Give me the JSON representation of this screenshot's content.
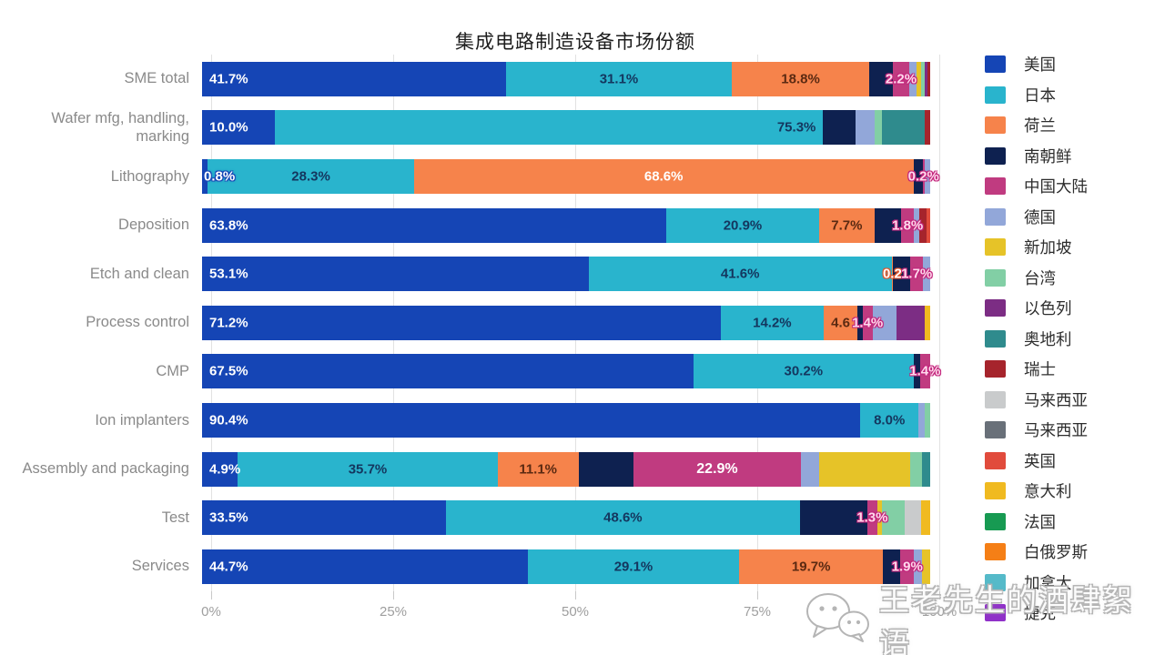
{
  "title": "集成电路制造设备市场份额",
  "watermark": {
    "text": "王老先生的酒肆絮语",
    "icon": "wechat-chat-bubbles-icon"
  },
  "legend": [
    {
      "id": "us",
      "label": "美国",
      "color": "#1545b5"
    },
    {
      "id": "jp",
      "label": "日本",
      "color": "#29b4cd"
    },
    {
      "id": "nl",
      "label": "荷兰",
      "color": "#f6834b"
    },
    {
      "id": "kr",
      "label": "南朝鲜",
      "color": "#0e2150"
    },
    {
      "id": "cn",
      "label": "中国大陆",
      "color": "#c03b80"
    },
    {
      "id": "de",
      "label": "德国",
      "color": "#92a7d9"
    },
    {
      "id": "sg",
      "label": "新加坡",
      "color": "#e6c328"
    },
    {
      "id": "tw",
      "label": "台湾",
      "color": "#82cfa5"
    },
    {
      "id": "il",
      "label": "以色列",
      "color": "#7c2d84"
    },
    {
      "id": "at",
      "label": "奥地利",
      "color": "#2f8b8d"
    },
    {
      "id": "ch",
      "label": "瑞士",
      "color": "#a6242c"
    },
    {
      "id": "my1",
      "label": "马来西亚",
      "color": "#c9cbcc"
    },
    {
      "id": "my2",
      "label": "马来西亚",
      "color": "#697079"
    },
    {
      "id": "uk",
      "label": "英国",
      "color": "#e14b3c"
    },
    {
      "id": "it",
      "label": "意大利",
      "color": "#f0ba20"
    },
    {
      "id": "fr",
      "label": "法国",
      "color": "#179a52"
    },
    {
      "id": "by",
      "label": "白俄罗斯",
      "color": "#f57f16"
    },
    {
      "id": "ca",
      "label": "加拿大",
      "color": "#55bac9"
    },
    {
      "id": "cz",
      "label": "捷克",
      "color": "#9031c9"
    }
  ],
  "chart_data": {
    "type": "bar",
    "variant": "horizontal-stacked",
    "unit": "%",
    "xlim": [
      0,
      100
    ],
    "x_ticks": [
      "0%",
      "25%",
      "50%",
      "75%",
      "100%"
    ],
    "x_tick_values": [
      0,
      25,
      50,
      75,
      100
    ],
    "grid": true,
    "legend_position": "right",
    "title": "集成电路制造设备市场份额",
    "categories": [
      "SME total",
      "Wafer mfg, handling, marking",
      "Lithography",
      "Deposition",
      "Etch and clean",
      "Process control",
      "CMP",
      "Ion implanters",
      "Assembly and packaging",
      "Test",
      "Services"
    ],
    "segment_columns": [
      "country_id",
      "value_percent",
      "label",
      "label_style"
    ],
    "rows": [
      {
        "category": "SME total",
        "segments": [
          [
            "us",
            41.7,
            "41.7%",
            "us-left"
          ],
          [
            "jp",
            31.1,
            "31.1%",
            "jp-center"
          ],
          [
            "nl",
            18.8,
            "18.8%",
            "nl-center"
          ],
          [
            "kr",
            3.3,
            null,
            null
          ],
          [
            "cn",
            2.2,
            "2.2%",
            "cn-glow"
          ],
          [
            "de",
            1.0,
            null,
            null
          ],
          [
            "sg",
            0.7,
            null,
            null
          ],
          [
            "tw",
            0.4,
            null,
            null
          ],
          [
            "il",
            0.4,
            null,
            null
          ],
          [
            "ch",
            0.4,
            null,
            null
          ]
        ]
      },
      {
        "category": "Wafer mfg, handling, marking",
        "segments": [
          [
            "us",
            10.0,
            "10.0%",
            "us-left"
          ],
          [
            "jp",
            75.3,
            "75.3%",
            "jp-right"
          ],
          [
            "kr",
            4.4,
            null,
            null
          ],
          [
            "de",
            2.7,
            null,
            null
          ],
          [
            "tw",
            1.0,
            null,
            null
          ],
          [
            "at",
            5.9,
            null,
            null
          ],
          [
            "ch",
            0.7,
            null,
            null
          ]
        ]
      },
      {
        "category": "Lithography",
        "segments": [
          [
            "us",
            0.8,
            "0.8%",
            "us-glow"
          ],
          [
            "jp",
            28.3,
            "28.3%",
            "jp-center"
          ],
          [
            "nl",
            68.6,
            "68.6%",
            "nl-white-center"
          ],
          [
            "kr",
            1.3,
            null,
            null
          ],
          [
            "cn",
            0.2,
            "0.2%",
            "cn-glow"
          ],
          [
            "de",
            0.8,
            null,
            null
          ]
        ]
      },
      {
        "category": "Deposition",
        "segments": [
          [
            "us",
            63.8,
            "63.8%",
            "us-left"
          ],
          [
            "jp",
            20.9,
            "20.9%",
            "jp-center"
          ],
          [
            "nl",
            7.7,
            "7.7%",
            "nl-center"
          ],
          [
            "kr",
            3.6,
            null,
            null
          ],
          [
            "cn",
            1.8,
            "1.8%",
            "cn-glow"
          ],
          [
            "de",
            0.7,
            null,
            null
          ],
          [
            "ch",
            1.0,
            null,
            null
          ],
          [
            "uk",
            0.5,
            null,
            null
          ]
        ]
      },
      {
        "category": "Etch and clean",
        "segments": [
          [
            "us",
            53.1,
            "53.1%",
            "us-left"
          ],
          [
            "jp",
            41.6,
            "41.6%",
            "jp-center"
          ],
          [
            "nl",
            0.2,
            "0.2",
            "nl-glow"
          ],
          [
            "kr",
            2.4,
            null,
            null
          ],
          [
            "cn",
            1.7,
            "1.7%",
            "cn-glow"
          ],
          [
            "de",
            1.0,
            null,
            null
          ]
        ]
      },
      {
        "category": "Process control",
        "segments": [
          [
            "us",
            71.2,
            "71.2%",
            "us-left"
          ],
          [
            "jp",
            14.2,
            "14.2%",
            "jp-center"
          ],
          [
            "nl",
            4.6,
            "4.6",
            "nl-center"
          ],
          [
            "kr",
            0.7,
            null,
            null
          ],
          [
            "cn",
            1.4,
            "1.4%",
            "cn-glow"
          ],
          [
            "de",
            3.3,
            null,
            null
          ],
          [
            "il",
            3.8,
            null,
            null
          ],
          [
            "it",
            0.8,
            null,
            null
          ]
        ]
      },
      {
        "category": "CMP",
        "segments": [
          [
            "us",
            67.5,
            "67.5%",
            "us-left"
          ],
          [
            "jp",
            30.2,
            "30.2%",
            "jp-center"
          ],
          [
            "kr",
            0.9,
            null,
            null
          ],
          [
            "cn",
            1.4,
            "1.4%",
            "cn-glow"
          ]
        ]
      },
      {
        "category": "Ion implanters",
        "segments": [
          [
            "us",
            90.4,
            "90.4%",
            "us-left"
          ],
          [
            "jp",
            8.0,
            "8.0%",
            "jp-center"
          ],
          [
            "de",
            0.9,
            null,
            null
          ],
          [
            "tw",
            0.7,
            null,
            null
          ]
        ]
      },
      {
        "category": "Assembly and packaging",
        "segments": [
          [
            "us",
            4.9,
            "4.9%",
            "us-left"
          ],
          [
            "jp",
            35.7,
            "35.7%",
            "jp-center"
          ],
          [
            "nl",
            11.1,
            "11.1%",
            "nl-center"
          ],
          [
            "kr",
            7.6,
            null,
            null
          ],
          [
            "cn",
            22.9,
            "22.9%",
            "cn-white-center"
          ],
          [
            "de",
            2.6,
            null,
            null
          ],
          [
            "sg",
            12.4,
            null,
            null
          ],
          [
            "tw",
            1.7,
            null,
            null
          ],
          [
            "at",
            1.1,
            null,
            null
          ]
        ]
      },
      {
        "category": "Test",
        "segments": [
          [
            "us",
            33.5,
            "33.5%",
            "us-left"
          ],
          [
            "jp",
            48.6,
            "48.6%",
            "jp-center"
          ],
          [
            "kr",
            9.3,
            null,
            null
          ],
          [
            "cn",
            1.3,
            "1.3%",
            "cn-glow"
          ],
          [
            "sg",
            0.7,
            null,
            null
          ],
          [
            "tw",
            3.1,
            null,
            null
          ],
          [
            "my1",
            2.2,
            null,
            null
          ],
          [
            "it",
            1.3,
            null,
            null
          ]
        ]
      },
      {
        "category": "Services",
        "segments": [
          [
            "us",
            44.7,
            "44.7%",
            "us-left"
          ],
          [
            "jp",
            29.1,
            "29.1%",
            "jp-center"
          ],
          [
            "nl",
            19.7,
            "19.7%",
            "nl-center"
          ],
          [
            "kr",
            2.4,
            null,
            null
          ],
          [
            "cn",
            1.9,
            "1.9%",
            "cn-glow"
          ],
          [
            "de",
            1.1,
            null,
            null
          ],
          [
            "sg",
            1.1,
            null,
            null
          ]
        ]
      }
    ]
  }
}
